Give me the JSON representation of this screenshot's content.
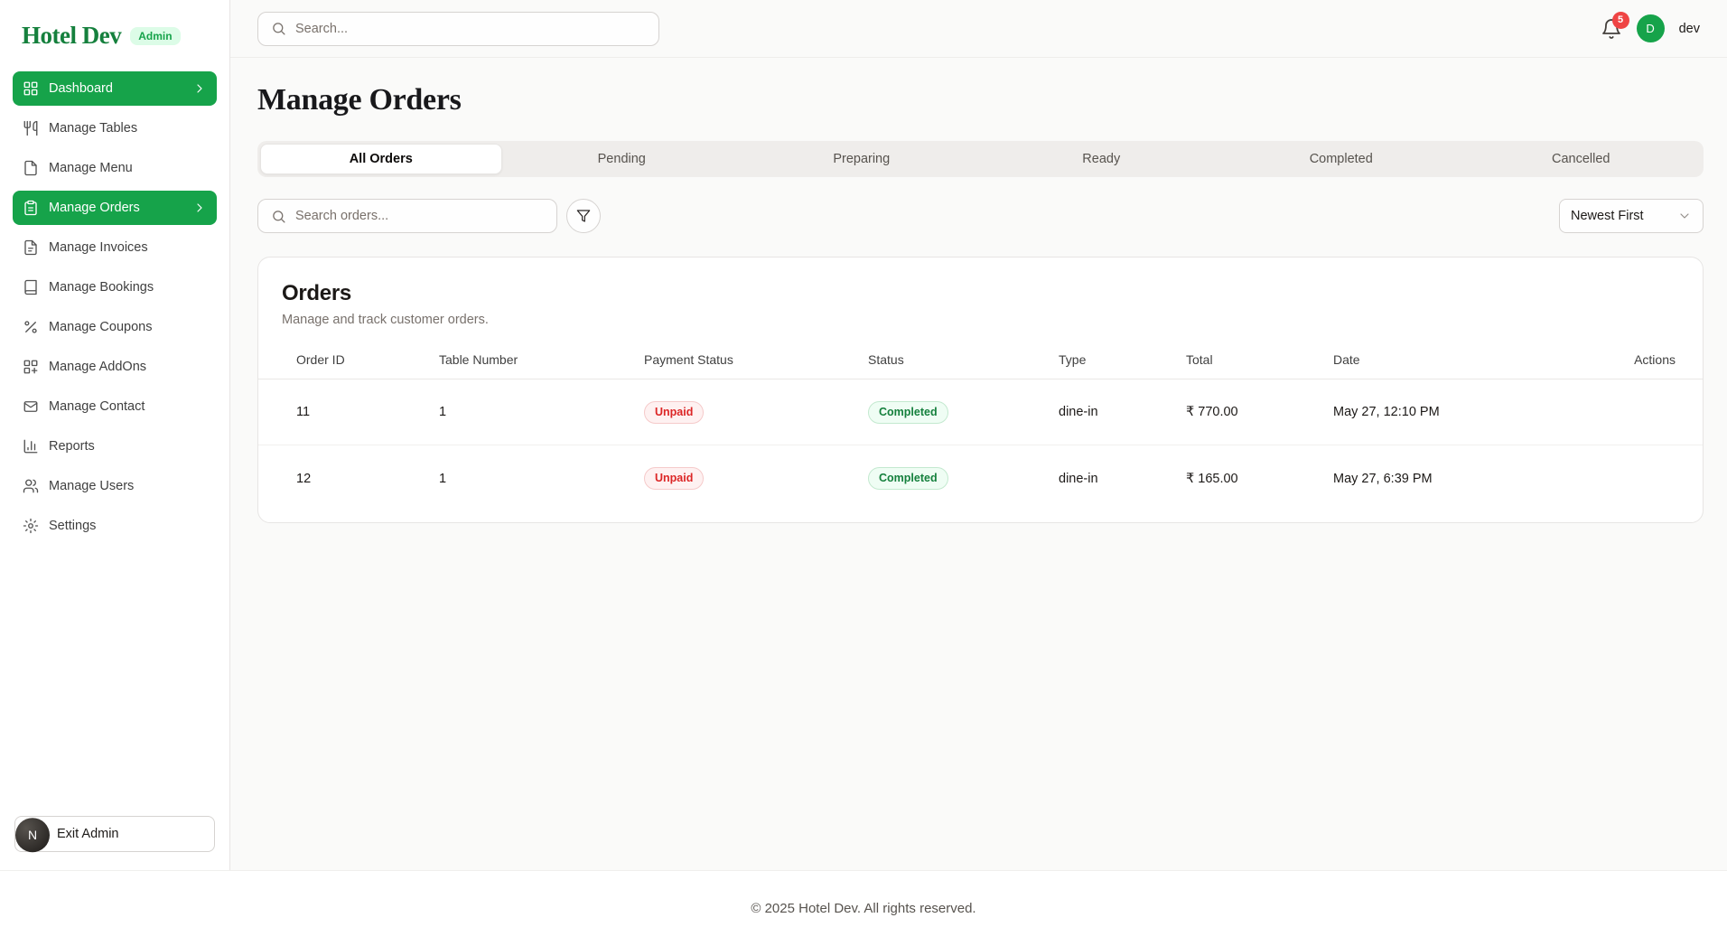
{
  "brand": {
    "name": "Hotel Dev",
    "badge": "Admin"
  },
  "topbar": {
    "search_placeholder": "Search...",
    "notification_count": "5",
    "avatar_initial": "D",
    "username": "dev"
  },
  "sidebar": {
    "items": [
      {
        "label": "Dashboard",
        "icon": "grid",
        "active": true,
        "chevron": true
      },
      {
        "label": "Manage Tables",
        "icon": "utensils",
        "active": false,
        "chevron": false
      },
      {
        "label": "Manage Menu",
        "icon": "file",
        "active": false,
        "chevron": false
      },
      {
        "label": "Manage Orders",
        "icon": "clipboard",
        "active": true,
        "chevron": true
      },
      {
        "label": "Manage Invoices",
        "icon": "invoice",
        "active": false,
        "chevron": false
      },
      {
        "label": "Manage Bookings",
        "icon": "book",
        "active": false,
        "chevron": false
      },
      {
        "label": "Manage Coupons",
        "icon": "percent",
        "active": false,
        "chevron": false
      },
      {
        "label": "Manage AddOns",
        "icon": "addons",
        "active": false,
        "chevron": false
      },
      {
        "label": "Manage Contact",
        "icon": "mail",
        "active": false,
        "chevron": false
      },
      {
        "label": "Reports",
        "icon": "chart",
        "active": false,
        "chevron": false
      },
      {
        "label": "Manage Users",
        "icon": "users",
        "active": false,
        "chevron": false
      },
      {
        "label": "Settings",
        "icon": "gear",
        "active": false,
        "chevron": false
      }
    ],
    "footer": {
      "avatar_initial": "N",
      "exit_label": "Exit Admin"
    }
  },
  "page": {
    "title": "Manage Orders",
    "tabs": [
      {
        "label": "All Orders",
        "active": true
      },
      {
        "label": "Pending",
        "active": false
      },
      {
        "label": "Preparing",
        "active": false
      },
      {
        "label": "Ready",
        "active": false
      },
      {
        "label": "Completed",
        "active": false
      },
      {
        "label": "Cancelled",
        "active": false
      }
    ],
    "search_placeholder": "Search orders...",
    "sort": "Newest First"
  },
  "orders_card": {
    "title": "Orders",
    "subtitle": "Manage and track customer orders.",
    "columns": [
      "Order ID",
      "Table Number",
      "Payment Status",
      "Status",
      "Type",
      "Total",
      "Date",
      "Actions"
    ],
    "rows": [
      {
        "order_id": "11",
        "table_number": "1",
        "payment_status": "Unpaid",
        "status": "Completed",
        "type": "dine-in",
        "total": "₹ 770.00",
        "date": "May 27, 12:10 PM"
      },
      {
        "order_id": "12",
        "table_number": "1",
        "payment_status": "Unpaid",
        "status": "Completed",
        "type": "dine-in",
        "total": "₹ 165.00",
        "date": "May 27, 6:39 PM"
      }
    ]
  },
  "page_footer": {
    "copyright": "© 2025 Hotel Dev. All rights reserved."
  },
  "colors": {
    "accent_green": "#16a34a",
    "logo_green": "#15803d",
    "badge_bg": "#dcfce7",
    "unpaid_text": "#dc2626",
    "unpaid_bg": "#fef1f1",
    "completed_text": "#15803d",
    "completed_bg": "#effdf4",
    "notification_red": "#ef4444",
    "page_bg": "#fafaf9"
  }
}
